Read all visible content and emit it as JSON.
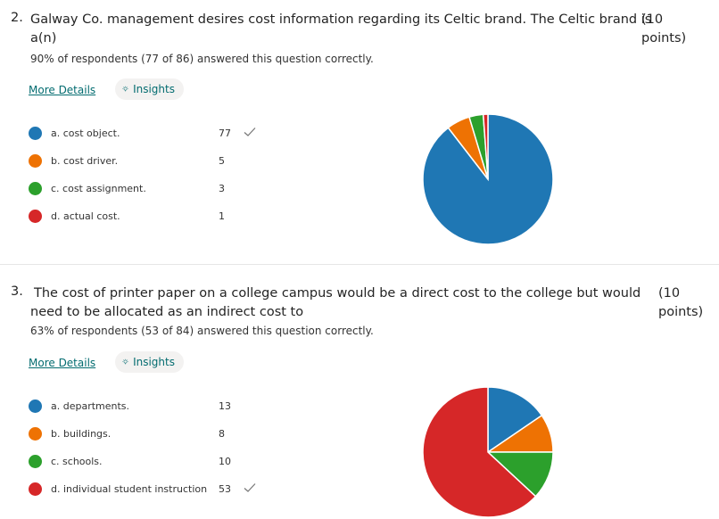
{
  "questions": [
    {
      "number": "2.",
      "text_line1": "Galway Co. management desires cost information regarding its Celtic brand. The Celtic brand is",
      "text_line2": "a(n)",
      "points_line1": "(10",
      "points_line2": "points)",
      "stats": "90% of respondents (77 of 86) answered this question correctly.",
      "more_details": "More Details",
      "insights": "Insights",
      "options": [
        {
          "label": "a. cost object.",
          "count": "77",
          "value": 77,
          "color": "#1f77b4",
          "correct": true
        },
        {
          "label": "b. cost driver.",
          "count": "5",
          "value": 5,
          "color": "#ee7203",
          "correct": false
        },
        {
          "label": "c. cost assignment.",
          "count": "3",
          "value": 3,
          "color": "#2ca02c",
          "correct": false
        },
        {
          "label": "d. actual cost.",
          "count": "1",
          "value": 1,
          "color": "#d62728",
          "correct": false
        }
      ]
    },
    {
      "number": "3.",
      "text_line1": "The cost of printer paper on a college campus would be a direct cost to the college but would",
      "text_line2": "need to be allocated as an indirect cost to",
      "points_line1": "(10",
      "points_line2": "points)",
      "stats": "63% of respondents (53 of 84) answered this question correctly.",
      "more_details": "More Details",
      "insights": "Insights",
      "options": [
        {
          "label": "a. departments.",
          "count": "13",
          "value": 13,
          "color": "#1f77b4",
          "correct": false
        },
        {
          "label": "b. buildings.",
          "count": "8",
          "value": 8,
          "color": "#ee7203",
          "correct": false
        },
        {
          "label": "c. schools.",
          "count": "10",
          "value": 10,
          "color": "#2ca02c",
          "correct": false
        },
        {
          "label": "d. individual student instruction",
          "count": "53",
          "value": 53,
          "color": "#d62728",
          "correct": true
        }
      ]
    }
  ]
}
